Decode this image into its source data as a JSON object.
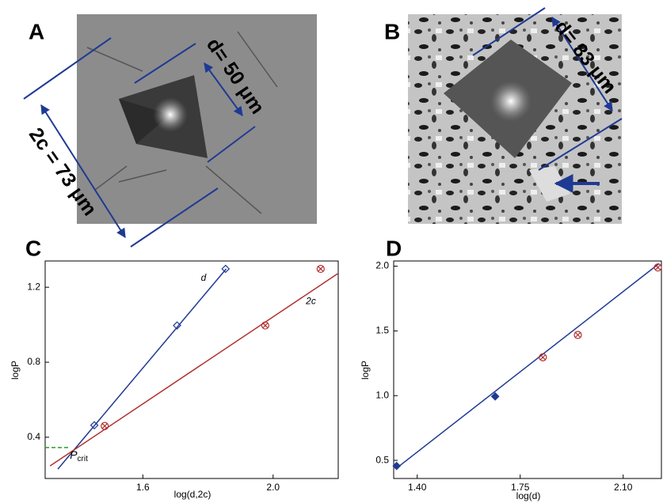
{
  "panels": [
    "A",
    "B",
    "C",
    "D"
  ],
  "image_annotations": [
    "d= 50 μm",
    "2c = 73 μm",
    "d= 83 μm"
  ],
  "chart_data": [
    {
      "type": "scatter",
      "xlabel": "log(d,2c)",
      "ylabel": "logP",
      "xlim": [
        1.3,
        2.2
      ],
      "ylim": [
        0.18,
        1.34
      ],
      "xticks": [
        1.6,
        {
          "value": 2.0,
          "label": "2.0"
        }
      ],
      "yticks": [
        0.4,
        0.8,
        1.2
      ],
      "series": [
        {
          "name": "d",
          "color": "#1f3a93",
          "marker": "open-diamond",
          "x": [
            1.451,
            1.705,
            1.854
          ],
          "values": [
            0.464,
            0.996,
            1.298
          ]
        },
        {
          "name": "2c",
          "color": "#b03030",
          "marker": "crossed-circle",
          "x": [
            1.483,
            1.976,
            2.146
          ],
          "values": [
            0.46,
            0.996,
            1.298
          ]
        }
      ],
      "fit_lines": [
        {
          "color": "#1f3a93",
          "x": [
            1.339,
            1.856
          ],
          "values": [
            0.23,
            1.298
          ]
        },
        {
          "color": "#b03030",
          "x": [
            1.315,
            2.198
          ],
          "values": [
            0.247,
            1.272
          ]
        }
      ],
      "annotations": [
        {
          "text": "P",
          "subscript": "crit",
          "value": 0.345,
          "x": [
            1.3,
            1.371
          ],
          "color": "#2a9d2a"
        }
      ]
    },
    {
      "type": "scatter",
      "xlabel": "log(d)",
      "ylabel": "logP",
      "xlim": [
        1.32,
        2.23
      ],
      "ylim": [
        0.36,
        2.04
      ],
      "xticks": [
        {
          "value": 1.4,
          "label": "1.40"
        },
        {
          "value": 1.75,
          "label": "1.75"
        },
        {
          "value": 2.1,
          "label": "2.10"
        }
      ],
      "yticks": [
        0.5,
        {
          "value": 1.0,
          "label": "1.0"
        },
        1.5,
        {
          "value": 2.0,
          "label": "2.0"
        }
      ],
      "series": [
        {
          "color": "#1f3a93",
          "marker": "filled-diamond",
          "x": [
            1.33,
            1.665
          ],
          "values": [
            0.457,
            0.994
          ]
        },
        {
          "color": "#b03030",
          "marker": "crossed-circle",
          "x": [
            1.827,
            1.946,
            2.218
          ],
          "values": [
            1.296,
            1.469,
            1.99
          ]
        }
      ],
      "fit_lines": [
        {
          "color": "#1f3a93",
          "x": [
            1.33,
            2.222
          ],
          "values": [
            0.44,
            2.02
          ]
        }
      ]
    }
  ]
}
